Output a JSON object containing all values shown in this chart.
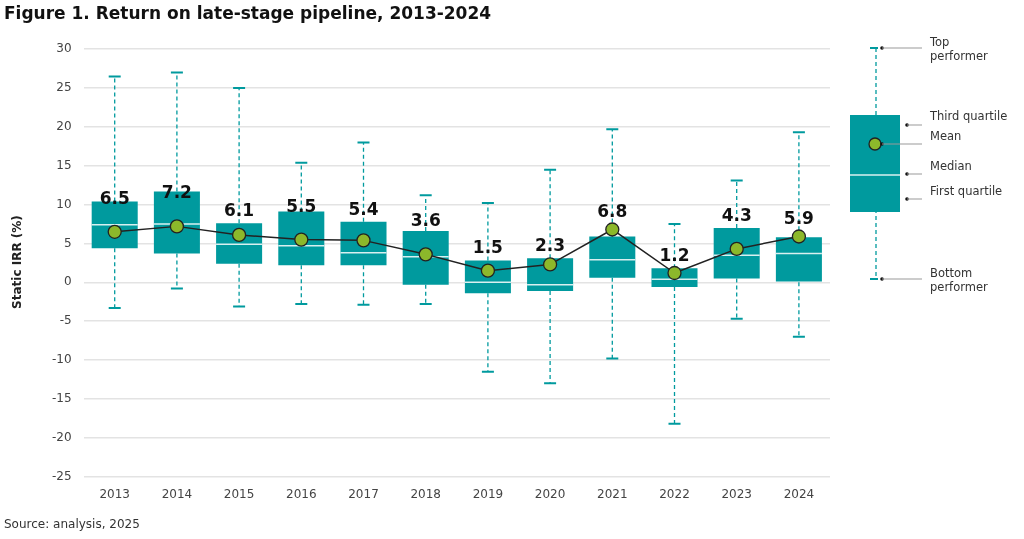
{
  "chart_data": {
    "type": "box",
    "title": "Figure 1. Return on late-stage pipeline, 2013-2024",
    "ylabel": "Static IRR (%)",
    "categories": [
      "2013",
      "2014",
      "2015",
      "2016",
      "2017",
      "2018",
      "2019",
      "2020",
      "2021",
      "2022",
      "2023",
      "2024"
    ],
    "ylim": [
      -25,
      30
    ],
    "yticks": [
      -25,
      -20,
      -15,
      -10,
      -5,
      0,
      5,
      10,
      15,
      20,
      25,
      30
    ],
    "grid": "y",
    "legend": false,
    "series": [
      {
        "type": "box",
        "color": "#009a9e",
        "boxes": [
          {
            "low": -3.3,
            "q1": 4.4,
            "median": 7.4,
            "q3": 10.4,
            "high": 26.5
          },
          {
            "low": -0.8,
            "q1": 3.7,
            "median": 7.5,
            "q3": 11.7,
            "high": 27.0
          },
          {
            "low": -3.1,
            "q1": 2.4,
            "median": 4.9,
            "q3": 7.6,
            "high": 25.0
          },
          {
            "low": -2.8,
            "q1": 2.2,
            "median": 4.7,
            "q3": 9.1,
            "high": 15.4
          },
          {
            "low": -2.9,
            "q1": 2.2,
            "median": 3.8,
            "q3": 7.8,
            "high": 18.0
          },
          {
            "low": -2.8,
            "q1": -0.3,
            "median": 3.3,
            "q3": 6.6,
            "high": 11.2
          },
          {
            "low": -11.5,
            "q1": -1.4,
            "median": 0.0,
            "q3": 2.8,
            "high": 10.2
          },
          {
            "low": -13.0,
            "q1": -1.1,
            "median": -0.3,
            "q3": 3.1,
            "high": 14.5
          },
          {
            "low": -9.8,
            "q1": 0.6,
            "median": 2.9,
            "q3": 5.9,
            "high": 19.7
          },
          {
            "low": -18.2,
            "q1": -0.6,
            "median": 0.4,
            "q3": 1.8,
            "high": 7.5
          },
          {
            "low": -4.7,
            "q1": 0.5,
            "median": 3.5,
            "q3": 7.0,
            "high": 13.1
          },
          {
            "low": -7.0,
            "q1": 0.0,
            "median": 3.7,
            "q3": 5.8,
            "high": 19.3
          }
        ]
      },
      {
        "type": "line",
        "color": "#222222",
        "marker": "circle",
        "data_labels": true,
        "values": [
          6.5,
          7.2,
          6.1,
          5.5,
          5.4,
          3.6,
          1.5,
          2.3,
          6.8,
          1.2,
          4.3,
          5.9
        ]
      }
    ],
    "annotations": [
      "Top performer",
      "Third quartile",
      "Mean",
      "Median",
      "First quartile",
      "Bottom performer",
      "Source: analysis, 2025"
    ]
  }
}
